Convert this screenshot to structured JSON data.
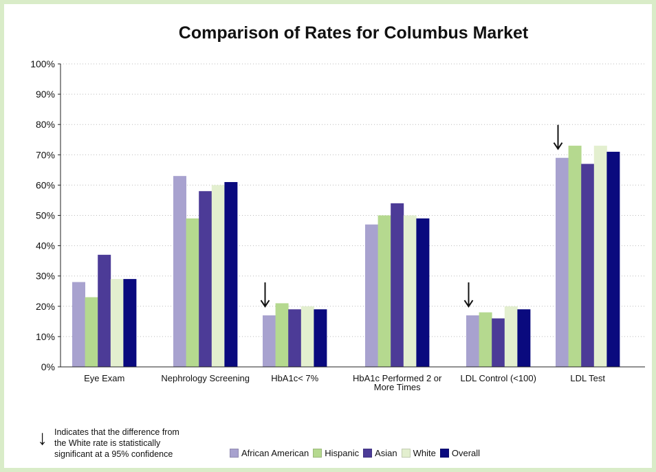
{
  "chart_data": {
    "type": "bar",
    "title": "Comparison of Rates for Columbus Market",
    "xlabel": "",
    "ylabel": "",
    "ylim": [
      0,
      100
    ],
    "y_ticks": [
      "0%",
      "10%",
      "20%",
      "30%",
      "40%",
      "50%",
      "60%",
      "70%",
      "80%",
      "90%",
      "100%"
    ],
    "grid": "horizontal dotted",
    "legend_position": "bottom",
    "categories": [
      [
        "Eye Exam"
      ],
      [
        "Nephrology Screening"
      ],
      [
        "HbA1c< 7%"
      ],
      [
        "HbA1c Performed 2 or",
        "More Times"
      ],
      [
        "LDL Control (<100)"
      ],
      [
        "LDL Test"
      ]
    ],
    "series": [
      {
        "name": "African American",
        "color": "#a8a2cf",
        "values": [
          28,
          63,
          17,
          47,
          17,
          69
        ]
      },
      {
        "name": "Hispanic",
        "color": "#b5d98f",
        "values": [
          23,
          49,
          21,
          50,
          18,
          73
        ]
      },
      {
        "name": "Asian",
        "color": "#4c3b97",
        "values": [
          37,
          58,
          19,
          54,
          16,
          67
        ]
      },
      {
        "name": "White",
        "color": "#e3efcf",
        "values": [
          29,
          60,
          20,
          50,
          20,
          73
        ]
      },
      {
        "name": "Overall",
        "color": "#0a0a7e",
        "values": [
          29,
          61,
          19,
          49,
          19,
          71
        ]
      }
    ],
    "significance_arrows": [
      {
        "category_index": 2,
        "series": "African American"
      },
      {
        "category_index": 4,
        "series": "African American"
      },
      {
        "category_index": 5,
        "series": "African American"
      }
    ]
  },
  "footnote": {
    "arrow_symbol": "↓",
    "text": "Indicates that the difference from\nthe White rate is statistically\nsignificant at a 95% confidence"
  }
}
